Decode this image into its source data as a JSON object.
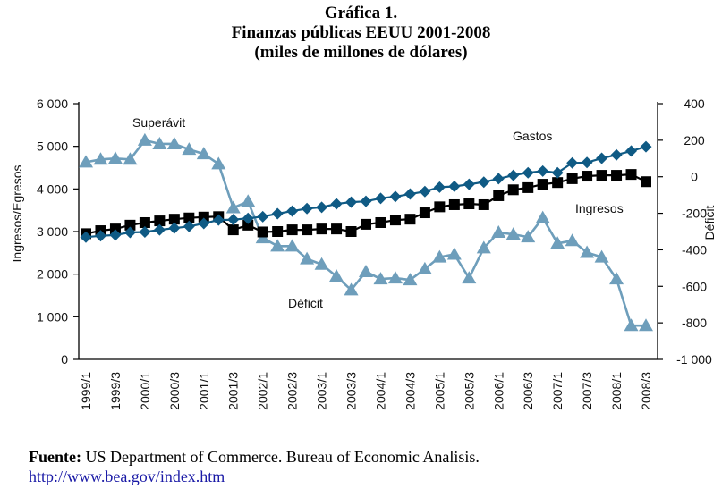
{
  "title": {
    "line1": "Gráfica 1.",
    "line2": "Finanzas públicas EEUU 2001-2008",
    "line3": "(miles de millones de dólares)"
  },
  "footer": {
    "source_label": "Fuente:",
    "source_text": "US Department of Commerce. Bureau of Economic Analisis.",
    "link_text": "http://www.bea.gov/index.htm"
  },
  "colors": {
    "gastos": "#0f5a84",
    "ingresos": "#000000",
    "deficit": "#6e9ebb",
    "link": "#1a1aa6"
  },
  "chart_data": {
    "type": "line",
    "title": "Finanzas públicas EEUU 2001-2008 (miles de millones de dólares)",
    "xlabel": "",
    "ylabel": "Ingresos/Egresos",
    "y2label": "Déficit",
    "ylim": [
      0,
      6000
    ],
    "y2lim": [
      -1000,
      400
    ],
    "yticks": [
      "0",
      "1 000",
      "2 000",
      "3 000",
      "4 000",
      "5 000",
      "6 000"
    ],
    "y2ticks": [
      "-1 000",
      "-800",
      "-600",
      "-400",
      "-200",
      "0",
      "200",
      "400"
    ],
    "yticks_values": [
      0,
      1000,
      2000,
      3000,
      4000,
      5000,
      6000
    ],
    "y2ticks_values": [
      -1000,
      -800,
      -600,
      -400,
      -200,
      0,
      200,
      400
    ],
    "grid": false,
    "legend": "none (inline annotations)",
    "x": [
      "1999/1",
      "1999/2",
      "1999/3",
      "1999/4",
      "2000/1",
      "2000/2",
      "2000/3",
      "2000/4",
      "2001/1",
      "2001/2",
      "2001/3",
      "2001/4",
      "2002/1",
      "2002/2",
      "2002/3",
      "2002/4",
      "2003/1",
      "2003/2",
      "2003/3",
      "2003/4",
      "2004/1",
      "2004/2",
      "2004/3",
      "2004/4",
      "2005/1",
      "2005/2",
      "2005/3",
      "2005/4",
      "2006/1",
      "2006/2",
      "2006/3",
      "2006/4",
      "2007/1",
      "2007/2",
      "2007/3",
      "2007/4",
      "2008/1",
      "2008/2",
      "2008/3"
    ],
    "xtick_labels": [
      "1999/1",
      "1999/3",
      "2000/1",
      "2000/3",
      "2001/1",
      "2001/3",
      "2002/1",
      "2002/3",
      "2003/1",
      "2003/3",
      "2004/1",
      "2004/3",
      "2005/1",
      "2005/3",
      "2006/1",
      "2006/3",
      "2007/1",
      "2007/3",
      "2008/1",
      "2008/3"
    ],
    "series": [
      {
        "name": "Gastos",
        "axis": "left",
        "marker": "diamond",
        "values": [
          2870,
          2900,
          2920,
          2980,
          2990,
          3040,
          3080,
          3120,
          3190,
          3270,
          3280,
          3310,
          3350,
          3420,
          3480,
          3540,
          3570,
          3650,
          3690,
          3710,
          3780,
          3820,
          3880,
          3940,
          4040,
          4060,
          4110,
          4160,
          4240,
          4320,
          4380,
          4420,
          4380,
          4610,
          4620,
          4720,
          4800,
          4890,
          4990
        ]
      },
      {
        "name": "Ingresos",
        "axis": "left",
        "marker": "square",
        "values": [
          2950,
          3020,
          3060,
          3150,
          3210,
          3250,
          3290,
          3320,
          3340,
          3350,
          3040,
          3150,
          2990,
          3000,
          3040,
          3040,
          3060,
          3060,
          3000,
          3170,
          3210,
          3270,
          3290,
          3440,
          3580,
          3630,
          3650,
          3630,
          3840,
          3980,
          4030,
          4110,
          4150,
          4240,
          4300,
          4320,
          4320,
          4340,
          4170
        ]
      },
      {
        "name": "Déficit",
        "axis": "right",
        "marker": "triangle",
        "values": [
          80,
          95,
          100,
          95,
          200,
          180,
          180,
          150,
          125,
          70,
          -170,
          -135,
          -335,
          -380,
          -380,
          -450,
          -480,
          -545,
          -620,
          -520,
          -560,
          -555,
          -565,
          -505,
          -440,
          -425,
          -555,
          -390,
          -305,
          -315,
          -330,
          -225,
          -365,
          -350,
          -415,
          -440,
          -560,
          -815,
          -815
        ]
      }
    ],
    "annotations": [
      {
        "text": "Superávit",
        "series": "Déficit",
        "near": "2000/1"
      },
      {
        "text": "Gastos",
        "series": "Gastos",
        "near": "2006/1"
      },
      {
        "text": "Ingresos",
        "series": "Ingresos",
        "near": "2007/3"
      },
      {
        "text": "Déficit",
        "series": "Déficit",
        "near": "2003/1"
      }
    ]
  }
}
